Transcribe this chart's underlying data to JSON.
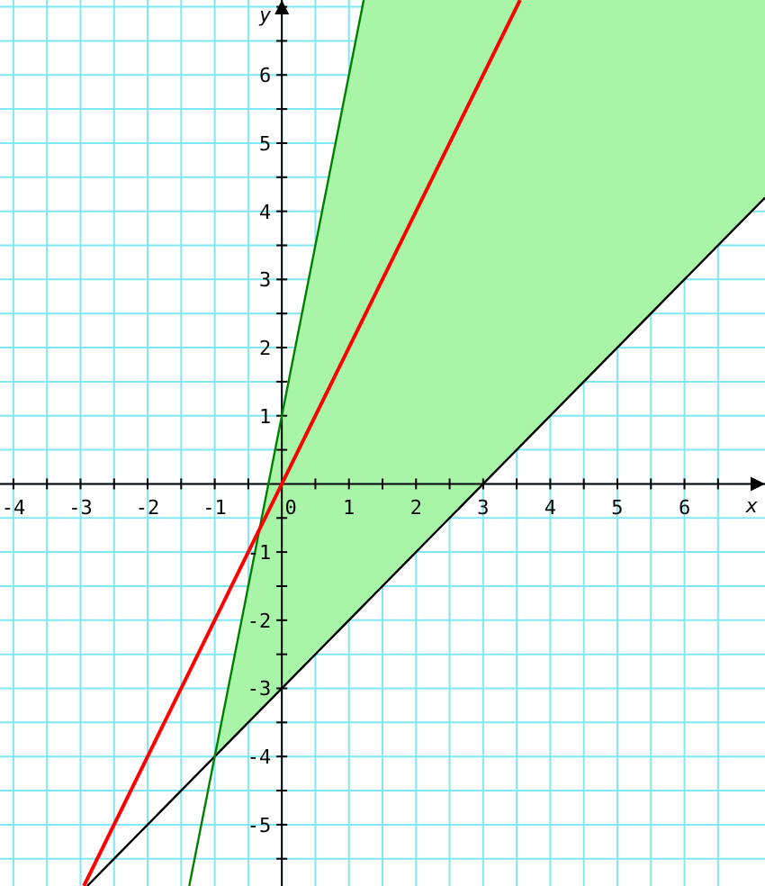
{
  "chart_data": {
    "type": "line",
    "xlabel": "x",
    "ylabel": "y",
    "xlim": [
      -4.2,
      7.2
    ],
    "ylim": [
      -5.9,
      7.1
    ],
    "grid": true,
    "xticks": [
      -4,
      {
        "value": -3.5,
        "label": null
      },
      -3,
      {
        "value": -2.5,
        "label": null
      },
      -2,
      {
        "value": -1.5,
        "label": null
      },
      -1,
      {
        "value": -0.5,
        "label": null
      },
      0,
      {
        "value": 0.5,
        "label": null
      },
      1,
      {
        "value": 1.5,
        "label": null
      },
      2,
      {
        "value": 2.5,
        "label": null
      },
      3,
      {
        "value": 3.5,
        "label": null
      },
      4,
      {
        "value": 4.5,
        "label": null
      },
      5,
      {
        "value": 5.5,
        "label": null
      },
      6,
      {
        "value": 6.5,
        "label": null
      }
    ],
    "yticks": [
      {
        "value": -5.5,
        "label": null
      },
      -5,
      {
        "value": -4.5,
        "label": null
      },
      -4,
      {
        "value": -3.5,
        "label": null
      },
      -3,
      {
        "value": -2.5,
        "label": null
      },
      -2,
      {
        "value": -1.5,
        "label": null
      },
      -1,
      {
        "value": -0.5,
        "label": null
      },
      {
        "value": 0,
        "label": null
      },
      {
        "value": 0.5,
        "label": null
      },
      1,
      {
        "value": 1.5,
        "label": null
      },
      2,
      {
        "value": 2.5,
        "label": null
      },
      3,
      {
        "value": 3.5,
        "label": null
      },
      4,
      {
        "value": 4.5,
        "label": null
      },
      5,
      {
        "value": 5.5,
        "label": null
      },
      6,
      {
        "value": 6.5,
        "label": null
      },
      {
        "value": 7,
        "label": null
      }
    ],
    "series": [
      {
        "color": "#000000",
        "x": [
          -2.9,
          -1,
          1.22,
          7.2
        ],
        "values": [
          -5.9,
          -4,
          -1.78,
          4.2
        ],
        "lower": [
          null,
          -4,
          -1.78,
          4.2
        ],
        "upper": [
          null,
          -4,
          7.1,
          7.1
        ]
      },
      {
        "color": "#008000",
        "x": [
          -1.38,
          1.22
        ],
        "values": [
          -5.9,
          7.1
        ]
      },
      {
        "color": "#ff0000",
        "x": [
          -2.95,
          3.55
        ],
        "values": [
          -5.9,
          7.1
        ]
      }
    ]
  }
}
